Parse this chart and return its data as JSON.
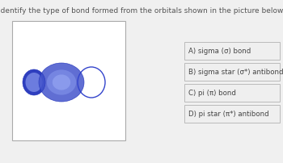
{
  "title": "Identify the type of bond formed from the orbitals shown in the picture below.",
  "title_fontsize": 6.5,
  "title_color": "#555555",
  "answers": [
    "A) sigma (σ) bond",
    "B) sigma star (σ*) antibond",
    "C) pi (π) bond",
    "D) pi star (π*) antibond"
  ],
  "answer_fontsize": 6.2,
  "answer_text_color": "#444444",
  "answer_box_facecolor": "#efefef",
  "answer_box_edgecolor": "#bbbbbb",
  "background_color": "#f0f0f0",
  "box_facecolor": "#ffffff",
  "box_edgecolor": "#aaaaaa",
  "orbital_blue_dark": "#2233bb",
  "orbital_blue_mid": "#4455cc",
  "orbital_blue_light": "#aabbff",
  "orbital_outline": "#3344cc"
}
